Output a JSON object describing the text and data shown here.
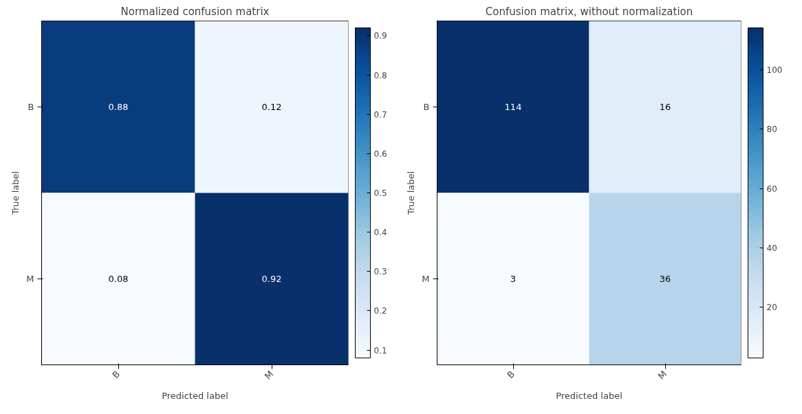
{
  "chart_data": [
    {
      "type": "heatmap",
      "title": "Normalized confusion matrix",
      "xlabel": "Predicted label",
      "ylabel": "True label",
      "categories": [
        "B",
        "M"
      ],
      "y_categories": [
        "B",
        "M"
      ],
      "cells": [
        [
          0.88,
          0.12
        ],
        [
          0.08,
          0.92
        ]
      ],
      "clim": [
        0.08,
        0.92
      ],
      "cticks": [
        0.1,
        0.2,
        0.3,
        0.4,
        0.5,
        0.6,
        0.7,
        0.8,
        0.9
      ],
      "data_labels": true
    },
    {
      "type": "heatmap",
      "title": "Confusion matrix, without normalization",
      "xlabel": "Predicted label",
      "ylabel": "True label",
      "categories": [
        "B",
        "M"
      ],
      "y_categories": [
        "B",
        "M"
      ],
      "cells": [
        [
          114,
          16
        ],
        [
          3,
          36
        ]
      ],
      "clim": [
        3,
        114
      ],
      "cticks": [
        20,
        40,
        60,
        80,
        100
      ],
      "data_labels": true
    }
  ]
}
